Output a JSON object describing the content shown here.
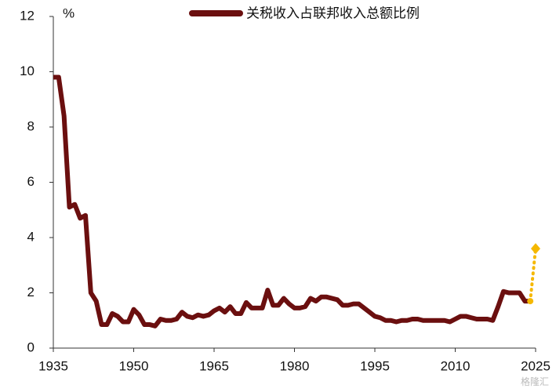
{
  "chart_data": {
    "type": "line",
    "legend_label": "关税收入占联邦收入总额比例",
    "y_unit": "%",
    "watermark": "格隆汇",
    "x": [
      1935,
      1936,
      1937,
      1938,
      1939,
      1940,
      1941,
      1942,
      1943,
      1944,
      1945,
      1946,
      1947,
      1948,
      1949,
      1950,
      1951,
      1952,
      1953,
      1954,
      1955,
      1956,
      1957,
      1958,
      1959,
      1960,
      1961,
      1962,
      1963,
      1964,
      1965,
      1966,
      1967,
      1968,
      1969,
      1970,
      1971,
      1972,
      1973,
      1974,
      1975,
      1976,
      1977,
      1978,
      1979,
      1980,
      1981,
      1982,
      1983,
      1984,
      1985,
      1986,
      1987,
      1988,
      1989,
      1990,
      1991,
      1992,
      1993,
      1994,
      1995,
      1996,
      1997,
      1998,
      1999,
      2000,
      2001,
      2002,
      2003,
      2004,
      2005,
      2006,
      2007,
      2008,
      2009,
      2010,
      2011,
      2012,
      2013,
      2014,
      2015,
      2016,
      2017,
      2018,
      2019,
      2020,
      2021,
      2022,
      2023,
      2024
    ],
    "series": [
      {
        "name": "关税收入占联邦收入总额比例",
        "color": "#6b0f0f",
        "values": [
          9.8,
          9.8,
          8.4,
          5.1,
          5.2,
          4.7,
          4.8,
          2.0,
          1.7,
          0.85,
          0.85,
          1.25,
          1.15,
          0.95,
          0.95,
          1.4,
          1.2,
          0.85,
          0.85,
          0.8,
          1.05,
          1.0,
          1.0,
          1.05,
          1.3,
          1.15,
          1.1,
          1.2,
          1.15,
          1.2,
          1.35,
          1.45,
          1.3,
          1.5,
          1.25,
          1.25,
          1.65,
          1.45,
          1.45,
          1.45,
          2.1,
          1.55,
          1.55,
          1.8,
          1.6,
          1.45,
          1.45,
          1.5,
          1.8,
          1.7,
          1.85,
          1.85,
          1.8,
          1.75,
          1.55,
          1.55,
          1.6,
          1.6,
          1.45,
          1.3,
          1.15,
          1.1,
          1.0,
          1.0,
          0.95,
          1.0,
          1.0,
          1.05,
          1.05,
          1.0,
          1.0,
          1.0,
          1.0,
          1.0,
          0.95,
          1.05,
          1.15,
          1.15,
          1.1,
          1.05,
          1.05,
          1.05,
          1.0,
          1.5,
          2.05,
          2.0,
          2.0,
          2.0,
          1.7,
          1.7
        ]
      }
    ],
    "projection": {
      "x": [
        2024,
        2025
      ],
      "values": [
        1.7,
        3.6
      ],
      "color": "#f5b800"
    },
    "xlim": [
      1935,
      2025
    ],
    "xticks": [
      1935,
      1950,
      1965,
      1980,
      1995,
      2010,
      2025
    ],
    "ylim": [
      0,
      12
    ],
    "yticks": [
      0,
      2,
      4,
      6,
      8,
      10,
      12
    ],
    "grid": false
  }
}
